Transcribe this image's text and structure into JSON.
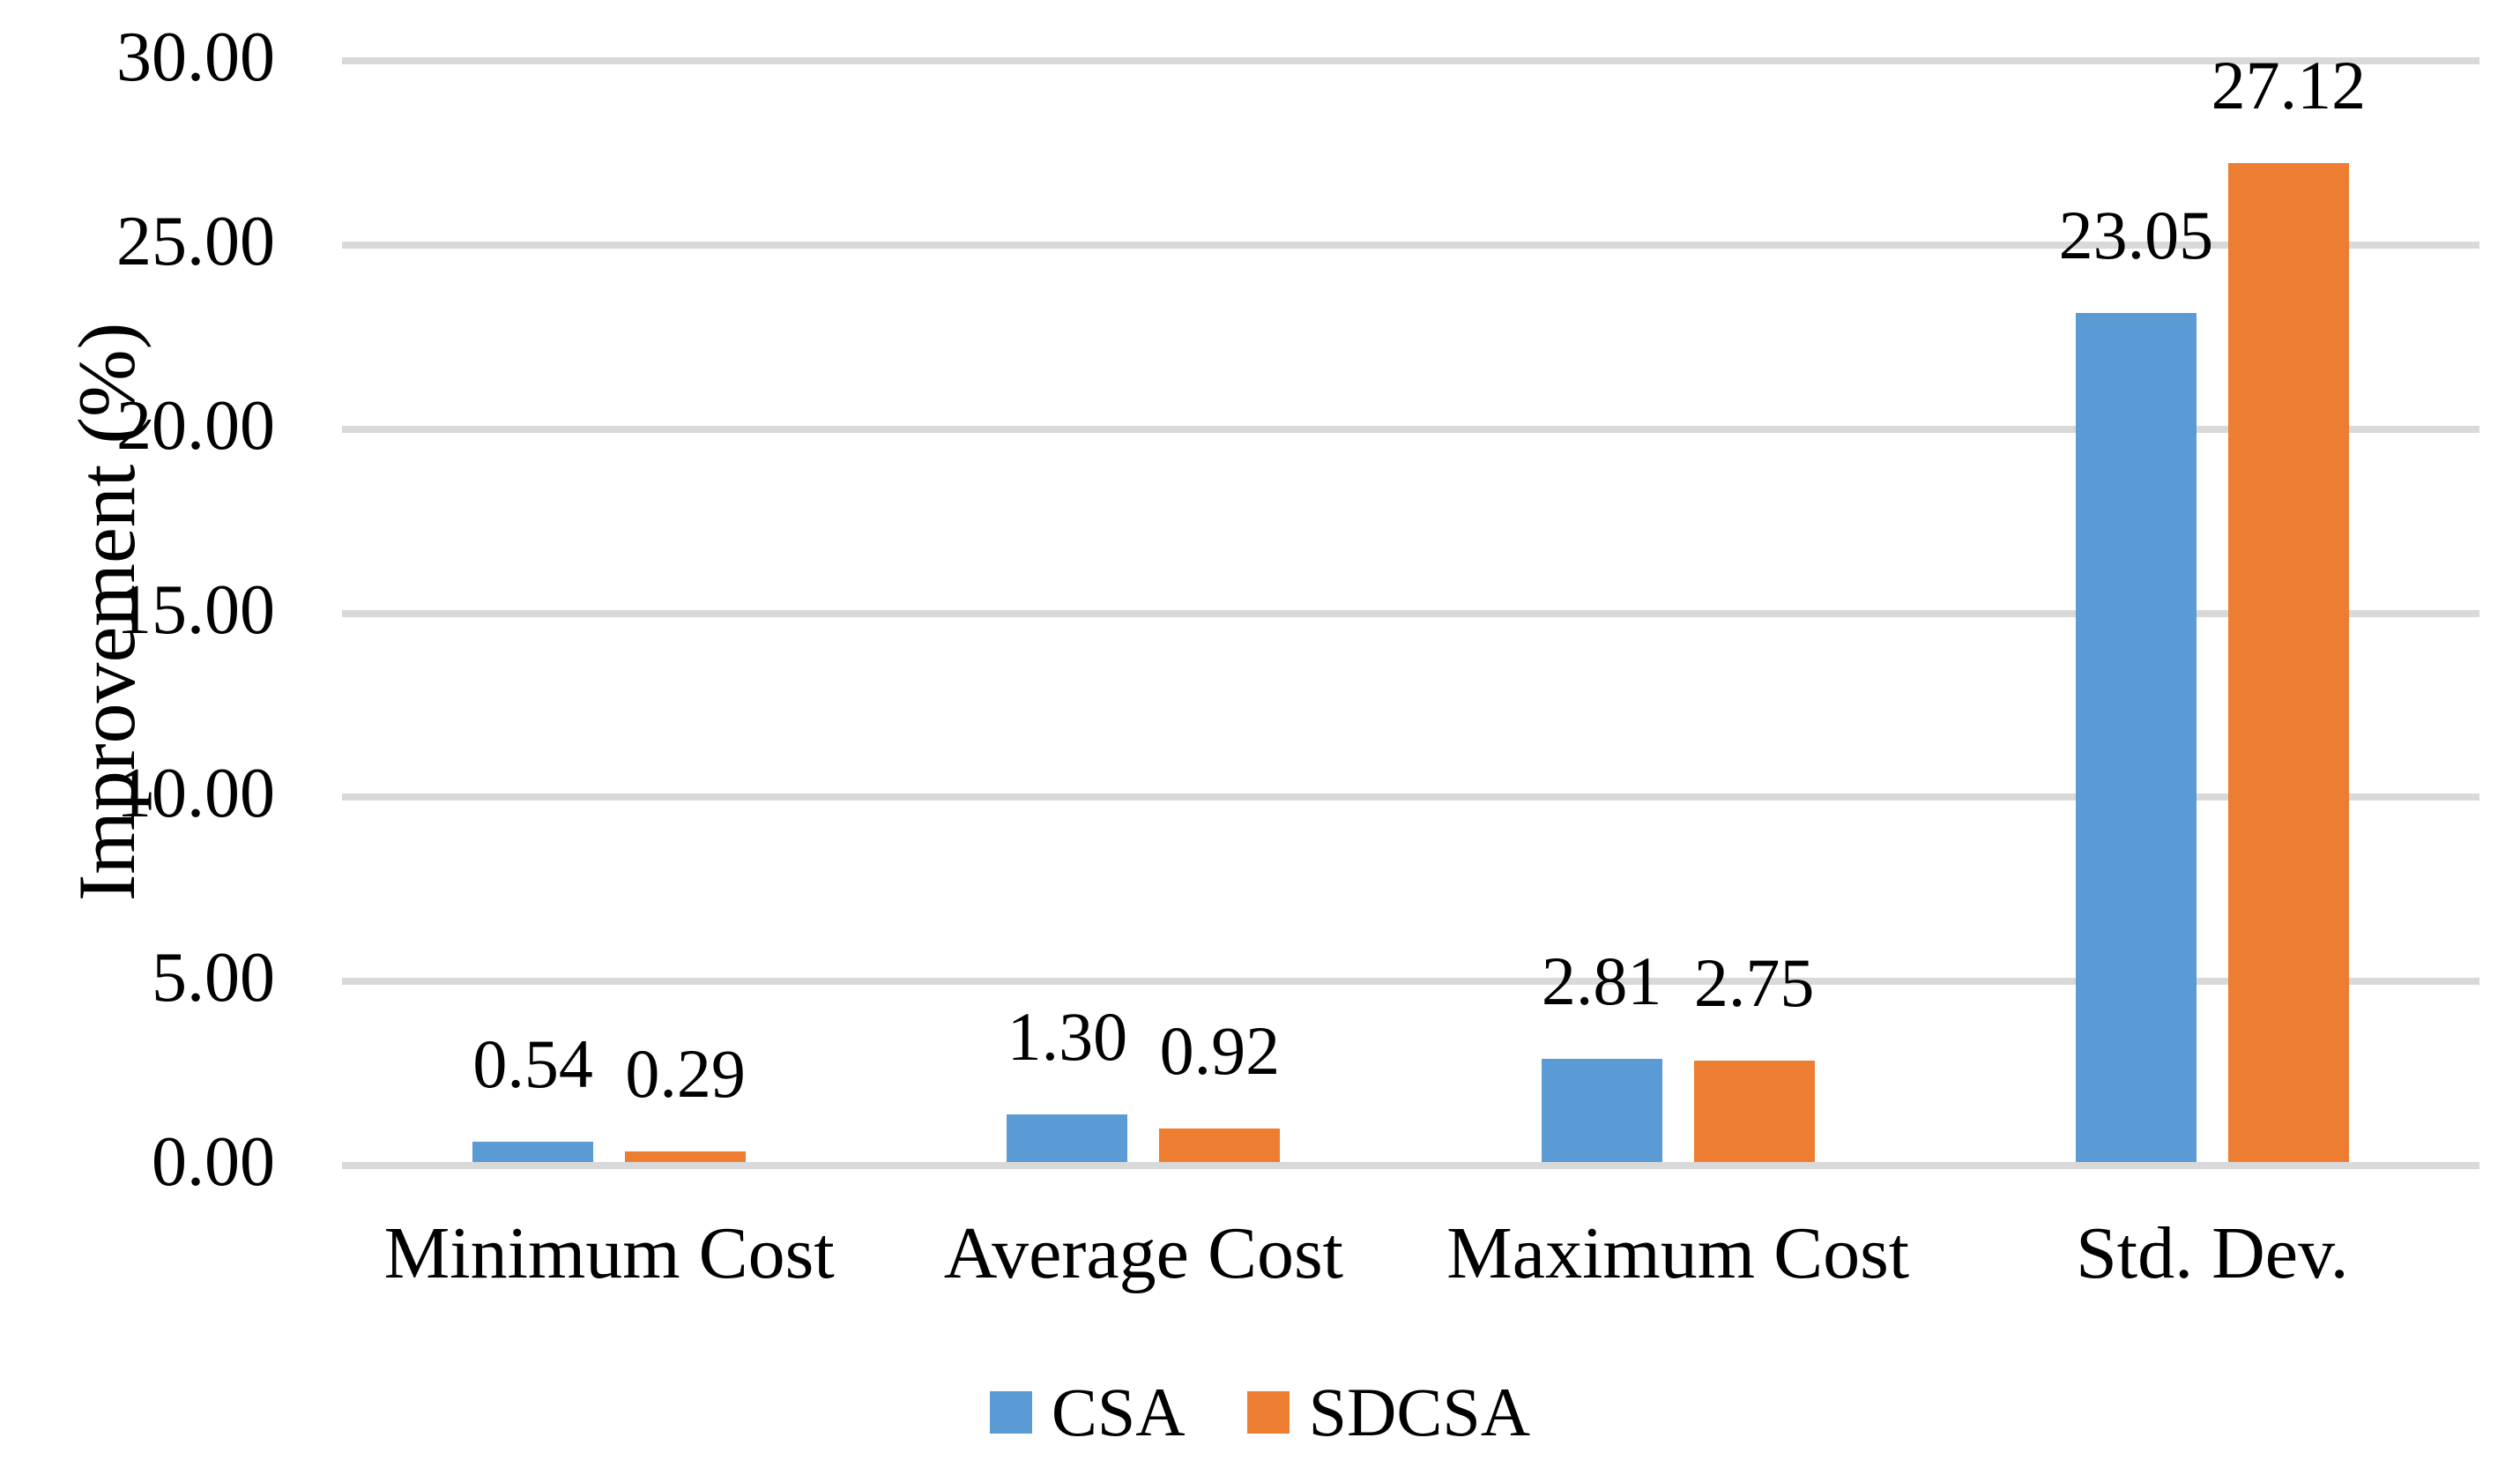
{
  "chart_data": {
    "type": "bar",
    "title": "",
    "xlabel": "",
    "ylabel": "Improvement (%)",
    "categories": [
      "Minimum Cost",
      "Average Cost",
      "Maximum Cost",
      "Std. Dev."
    ],
    "series": [
      {
        "name": "CSA",
        "color": "#5B9BD5",
        "values": [
          0.54,
          1.3,
          2.81,
          23.05
        ],
        "value_labels": [
          "0.54",
          "1.30",
          "2.81",
          "23.05"
        ]
      },
      {
        "name": "SDCSA",
        "color": "#ED7D31",
        "values": [
          0.29,
          0.92,
          2.75,
          27.12
        ],
        "value_labels": [
          "0.29",
          "0.92",
          "2.75",
          "27.12"
        ]
      }
    ],
    "y_axis": {
      "min": 0,
      "max": 30,
      "step": 5,
      "tick_labels": [
        "0.00",
        "5.00",
        "10.00",
        "15.00",
        "20.00",
        "25.00",
        "30.00"
      ]
    },
    "grid": "horizontal",
    "legend_position": "bottom-center",
    "colors": {
      "gridline": "#D9D9D9",
      "axis_line": "#D9D9D9",
      "text": "#000000",
      "background": "#FFFFFF"
    }
  }
}
